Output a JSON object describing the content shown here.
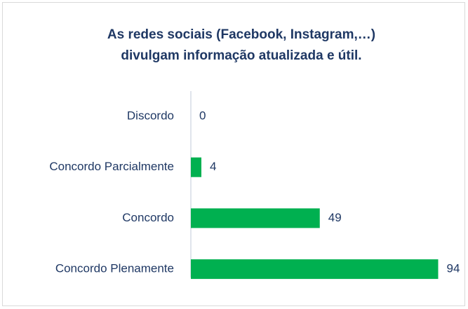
{
  "chart_data": {
    "type": "bar",
    "orientation": "horizontal",
    "title": [
      "As redes sociais (Facebook, Instagram,…)",
      "divulgam informação atualizada e útil."
    ],
    "categories": [
      "Discordo",
      "Concordo Parcialmente",
      "Concordo",
      "Concordo Plenamente"
    ],
    "values": [
      0,
      4,
      49,
      94
    ],
    "color": "#00b050",
    "xlim": [
      0,
      100
    ]
  }
}
